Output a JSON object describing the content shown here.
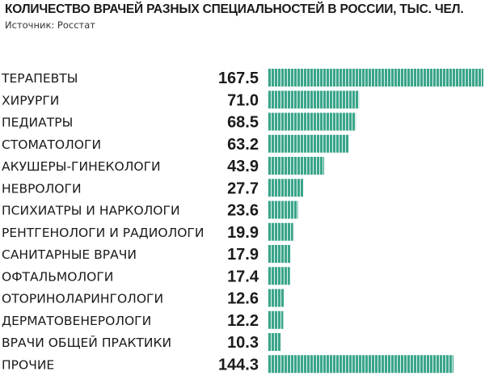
{
  "chart_data": {
    "type": "bar",
    "orientation": "horizontal",
    "title": "КОЛИЧЕСТВО ВРАЧЕЙ РАЗНЫХ СПЕЦИАЛЬНОСТЕЙ В РОССИИ, ТЫС. ЧЕЛ.",
    "subtitle": "Источник: Росстат",
    "categories": [
      "ТЕРАПЕВТЫ",
      "ХИРУРГИ",
      "ПЕДИАТРЫ",
      "СТОМАТОЛОГИ",
      "АКУШЕРЫ-ГИНЕКОЛОГИ",
      "НЕВРОЛОГИ",
      "ПСИХИАТРЫ И НАРКОЛОГИ",
      "РЕНТГЕНОЛОГИ И РАДИОЛОГИ",
      "САНИТАРНЫЕ ВРАЧИ",
      "ОФТАЛЬМОЛОГИ",
      "ОТОРИНОЛАРИНГОЛОГИ",
      "ДЕРМАТОВЕНЕРОЛОГИ",
      "ВРАЧИ ОБЩЕЙ ПРАКТИКИ",
      "ПРОЧИЕ"
    ],
    "values": [
      167.5,
      71.0,
      68.5,
      63.2,
      43.9,
      27.7,
      23.6,
      19.9,
      17.9,
      17.4,
      12.6,
      12.2,
      10.3,
      144.3
    ],
    "value_labels": [
      "167.5",
      "71.0",
      "68.5",
      "63.2",
      "43.9",
      "27.7",
      "23.6",
      "19.9",
      "17.9",
      "17.4",
      "12.6",
      "12.2",
      "10.3",
      "144.3"
    ],
    "xlim": [
      0,
      167.5
    ],
    "grid": false,
    "legend": "none",
    "colors": {
      "bar": "#3aa58a",
      "bar_stripe": "#ffffff",
      "text": "#1a1a1a"
    }
  }
}
